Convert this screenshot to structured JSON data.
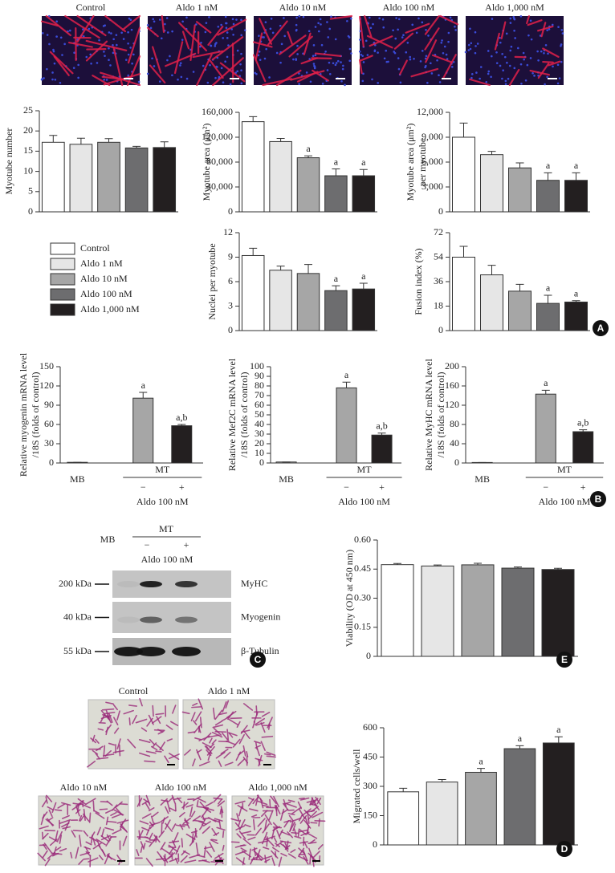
{
  "panel_A_images": [
    "Control",
    "Aldo 1 nM",
    "Aldo 10 nM",
    "Aldo 100 nM",
    "Aldo 1,000 nM"
  ],
  "legend": {
    "labels": [
      "Control",
      "Aldo 1 nM",
      "Aldo 10 nM",
      "Aldo 100 nM",
      "Aldo 1,000 nM"
    ],
    "colors": [
      "#ffffff",
      "#e6e6e6",
      "#a6a6a6",
      "#6d6d6f",
      "#231f20"
    ]
  },
  "chart_data": [
    {
      "type": "bar",
      "ylabel": [
        "Myotube number"
      ],
      "values": [
        17.2,
        16.7,
        17.2,
        15.8,
        15.9
      ],
      "errors": [
        1.7,
        1.5,
        0.9,
        0.4,
        1.4
      ],
      "annotations": [
        null,
        null,
        null,
        null,
        null
      ],
      "ylim": [
        0,
        25
      ],
      "yticks": [
        0,
        5,
        10,
        15,
        20,
        25
      ]
    },
    {
      "type": "bar",
      "ylabel": [
        "Myotube area (μm²)"
      ],
      "values": [
        145000,
        113000,
        87000,
        58000,
        58000
      ],
      "errors": [
        8000,
        5000,
        3000,
        11000,
        10000
      ],
      "annotations": [
        null,
        null,
        "a",
        "a",
        "a"
      ],
      "ylim": [
        0,
        160000
      ],
      "yticks": [
        0,
        {
          "value": 40000,
          "label": "40,000"
        },
        {
          "value": 80000,
          "label": "80,000"
        },
        {
          "value": 120000,
          "label": "120,000"
        },
        {
          "value": 160000,
          "label": "160,000"
        }
      ]
    },
    {
      "type": "bar",
      "ylabel": [
        "Myotube area (μm²)",
        "per myotube"
      ],
      "values": [
        9000,
        6900,
        5300,
        3800,
        3800
      ],
      "errors": [
        1700,
        400,
        600,
        900,
        900
      ],
      "annotations": [
        null,
        null,
        null,
        "a",
        "a"
      ],
      "ylim": [
        0,
        12000
      ],
      "yticks": [
        0,
        {
          "value": 3000,
          "label": "3,000"
        },
        {
          "value": 6000,
          "label": "6,000"
        },
        {
          "value": 9000,
          "label": "9,000"
        },
        {
          "value": 12000,
          "label": "12,000"
        }
      ]
    },
    {
      "type": "bar",
      "ylabel": [
        "Nuclei per myotube"
      ],
      "values": [
        9.2,
        7.4,
        7.0,
        4.9,
        5.1
      ],
      "errors": [
        0.9,
        0.5,
        1.1,
        0.6,
        0.7
      ],
      "annotations": [
        null,
        null,
        null,
        "a",
        "a"
      ],
      "ylim": [
        0,
        12
      ],
      "yticks": [
        0,
        3,
        6,
        9,
        12
      ]
    },
    {
      "type": "bar",
      "ylabel": [
        "Fusion index (%)"
      ],
      "values": [
        54,
        41,
        29,
        20,
        21
      ],
      "errors": [
        8,
        7,
        5,
        6,
        1
      ],
      "annotations": [
        null,
        null,
        null,
        "a",
        "a"
      ],
      "ylim": [
        0,
        72
      ],
      "yticks": [
        0,
        18,
        36,
        54,
        72
      ]
    },
    {
      "type": "bar",
      "ylabel": [
        "Relative myogenin mRNA level",
        "/18S (folds of control)"
      ],
      "categories": [
        "MB",
        "−",
        "+"
      ],
      "group_label": "MT",
      "xlabel": "Aldo 100 nM",
      "colors": [
        "#ffffff",
        "#a6a6a6",
        "#231f20"
      ],
      "values": [
        1,
        101,
        58
      ],
      "errors": [
        0,
        9,
        2
      ],
      "annotations": [
        null,
        "a",
        "a,b"
      ],
      "ylim": [
        0,
        150
      ],
      "yticks": [
        0,
        30,
        60,
        90,
        120,
        150
      ]
    },
    {
      "type": "bar",
      "ylabel": [
        "Relative Mef2C mRNA level",
        "/18S (folds of control)"
      ],
      "categories": [
        "MB",
        "−",
        "+"
      ],
      "group_label": "MT",
      "xlabel": "Aldo 100 nM",
      "colors": [
        "#ffffff",
        "#a6a6a6",
        "#231f20"
      ],
      "values": [
        1,
        78,
        29
      ],
      "errors": [
        0,
        6,
        2
      ],
      "annotations": [
        null,
        "a",
        "a,b"
      ],
      "ylim": [
        0,
        100
      ],
      "yticks": [
        0,
        10,
        20,
        30,
        40,
        50,
        60,
        70,
        80,
        90,
        100
      ]
    },
    {
      "type": "bar",
      "ylabel": [
        "Relative MyHC mRNA level",
        "/18S (folds of control)"
      ],
      "categories": [
        "MB",
        "−",
        "+"
      ],
      "group_label": "MT",
      "xlabel": "Aldo 100 nM",
      "colors": [
        "#ffffff",
        "#a6a6a6",
        "#231f20"
      ],
      "values": [
        1,
        143,
        65
      ],
      "errors": [
        0,
        8,
        4
      ],
      "annotations": [
        null,
        "a",
        "a,b"
      ],
      "ylim": [
        0,
        200
      ],
      "yticks": [
        0,
        40,
        80,
        120,
        160,
        200
      ]
    },
    {
      "type": "bar",
      "ylabel": [
        "Viability (OD at 450 nm)"
      ],
      "values": [
        0.473,
        0.466,
        0.472,
        0.455,
        0.448
      ],
      "errors": [
        0.006,
        0.005,
        0.008,
        0.006,
        0.006
      ],
      "annotations": [
        null,
        null,
        null,
        null,
        null
      ],
      "ylim": [
        0,
        0.6
      ],
      "yticks": [
        0,
        0.15,
        {
          "value": 0.3,
          "label": "0.30"
        },
        0.45,
        {
          "value": 0.6,
          "label": "0.60"
        }
      ]
    },
    {
      "type": "bar",
      "ylabel": [
        "Migrated cells/well"
      ],
      "values": [
        272,
        322,
        372,
        493,
        522
      ],
      "errors": [
        18,
        13,
        20,
        15,
        32
      ],
      "annotations": [
        null,
        null,
        "a",
        "a",
        "a"
      ],
      "ylim": [
        0,
        600
      ],
      "yticks": [
        0,
        150,
        300,
        450,
        600
      ]
    }
  ],
  "blot": {
    "lane_group_left": "MB",
    "lane_group_right": "MT",
    "minus": "−",
    "plus": "+",
    "treatment": "Aldo 100 nM",
    "markers": [
      "200 kDa",
      "40 kDa",
      "55 kDa"
    ],
    "proteins": [
      "MyHC",
      "Myogenin",
      "β-Tubulin"
    ]
  },
  "panel_D_images": [
    "Control",
    "Aldo 1 nM",
    "Aldo 10 nM",
    "Aldo 100 nM",
    "Aldo 1,000 nM"
  ],
  "panel_letters": [
    "A",
    "B",
    "C",
    "D",
    "E"
  ]
}
